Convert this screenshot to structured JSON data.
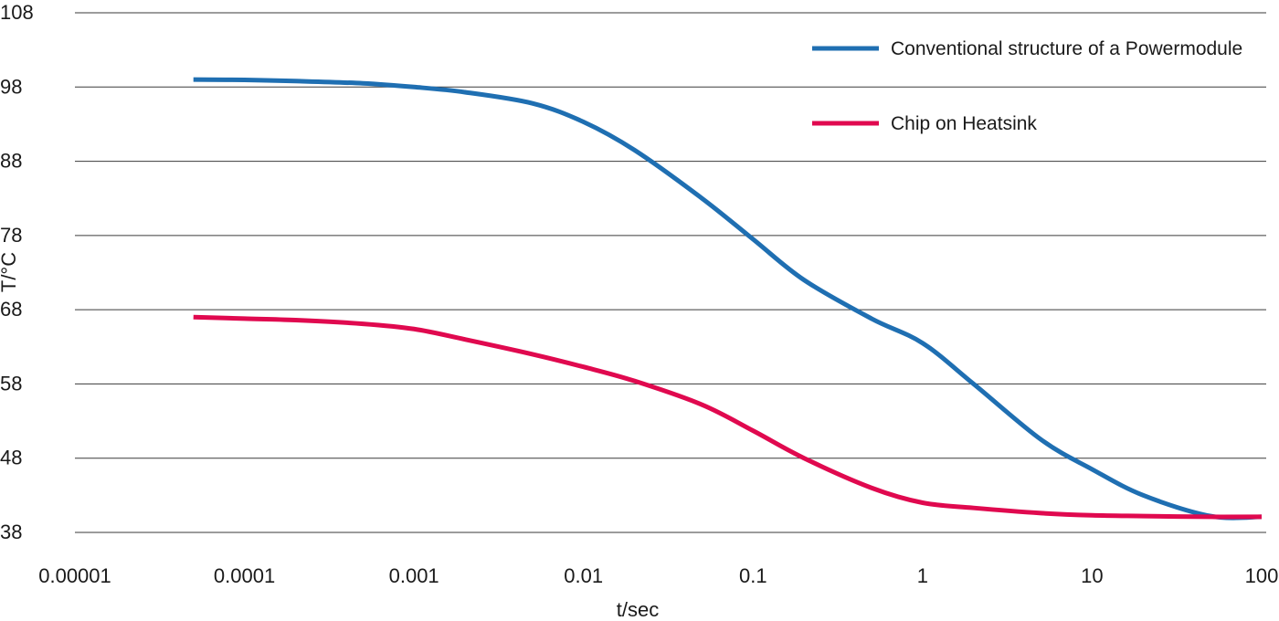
{
  "chart_data": {
    "type": "line",
    "title": "",
    "xlabel": "t/sec",
    "ylabel": "T/°C",
    "x_scale": "log",
    "xlim": [
      1e-05,
      100
    ],
    "ylim": [
      38,
      108
    ],
    "x_ticks": [
      "0.00001",
      "0.0001",
      "0.001",
      "0.01",
      "0.1",
      "1",
      "10",
      "100"
    ],
    "y_ticks": [
      "108",
      "98",
      "88",
      "78",
      "68",
      "58",
      "48",
      "38"
    ],
    "grid": true,
    "legend_position": "top-right",
    "series": [
      {
        "name": "Conventional structure of a Powermodule",
        "color": "#1f6fb2",
        "points": [
          [
            5e-05,
            99.0
          ],
          [
            0.0001,
            98.95
          ],
          [
            0.0002,
            98.8
          ],
          [
            0.0005,
            98.5
          ],
          [
            0.001,
            98.0
          ],
          [
            0.002,
            97.3
          ],
          [
            0.005,
            95.8
          ],
          [
            0.01,
            93.3
          ],
          [
            0.02,
            89.5
          ],
          [
            0.05,
            83.0
          ],
          [
            0.1,
            77.5
          ],
          [
            0.2,
            72.0
          ],
          [
            0.5,
            66.8
          ],
          [
            1,
            63.5
          ],
          [
            2,
            58.0
          ],
          [
            5,
            50.5
          ],
          [
            10,
            46.5
          ],
          [
            20,
            43.0
          ],
          [
            50,
            40.2
          ],
          [
            100,
            40.1
          ]
        ]
      },
      {
        "name": "Chip on Heatsink",
        "color": "#e0094f",
        "points": [
          [
            5e-05,
            67.0
          ],
          [
            0.0001,
            66.8
          ],
          [
            0.0002,
            66.6
          ],
          [
            0.0005,
            66.1
          ],
          [
            0.001,
            65.4
          ],
          [
            0.002,
            64.0
          ],
          [
            0.005,
            62.0
          ],
          [
            0.01,
            60.3
          ],
          [
            0.02,
            58.4
          ],
          [
            0.05,
            55.2
          ],
          [
            0.1,
            51.7
          ],
          [
            0.2,
            48.0
          ],
          [
            0.5,
            44.0
          ],
          [
            1,
            42.0
          ],
          [
            2,
            41.3
          ],
          [
            5,
            40.6
          ],
          [
            10,
            40.3
          ],
          [
            20,
            40.2
          ],
          [
            50,
            40.1
          ],
          [
            100,
            40.1
          ]
        ]
      }
    ]
  }
}
